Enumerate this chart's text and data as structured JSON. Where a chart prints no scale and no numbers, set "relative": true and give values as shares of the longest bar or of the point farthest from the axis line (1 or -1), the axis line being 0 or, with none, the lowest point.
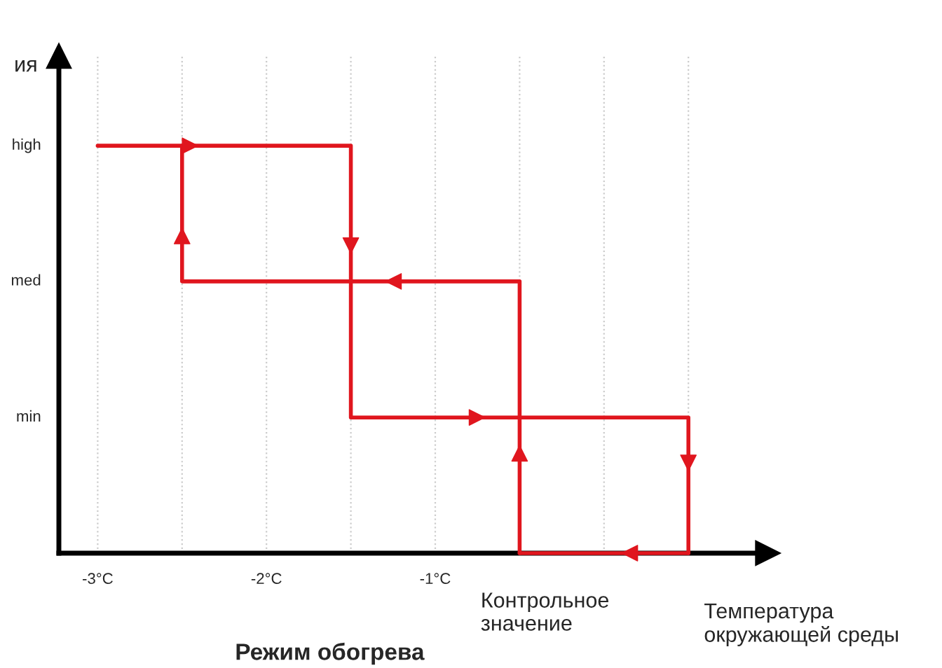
{
  "chart_data": {
    "type": "line",
    "title": "Режим обогрева",
    "xlabel": "Температура\nокружающей среды",
    "ylabel": "ия",
    "annotations": [
      {
        "text": "Контрольное\nзначение",
        "x": -0.5,
        "y": 0
      },
      "high",
      "med",
      "min"
    ],
    "relative": true,
    "xlim": [
      -3.23,
      0.97
    ],
    "xticks": [
      {
        "value": -3,
        "label": "-3°C"
      },
      {
        "value": -2.5,
        "label": null
      },
      {
        "value": -2,
        "label": "-2°C"
      },
      {
        "value": -1.5,
        "label": null
      },
      {
        "value": -1,
        "label": "-1°C"
      },
      {
        "value": -0.5,
        "label": null
      },
      {
        "value": 0,
        "label": null
      },
      {
        "value": 0.5,
        "label": null
      }
    ],
    "grid": "x",
    "marker": "none",
    "line_style": "solid",
    "series": [
      {
        "color": "#e0161e",
        "x": [
          -3,
          -1.5,
          -1.5,
          0.5,
          0.5
        ],
        "values": [
          1,
          1,
          0.333,
          0.333,
          0
        ]
      },
      {
        "color": "#e0161e",
        "x": [
          -0.5,
          -0.5,
          -2.5,
          -2.5
        ],
        "values": [
          0,
          0.667,
          0.667,
          1
        ]
      },
      {
        "color": "#e0161e",
        "x": [
          0.5,
          -0.5
        ],
        "values": [
          0,
          0
        ]
      }
    ]
  }
}
